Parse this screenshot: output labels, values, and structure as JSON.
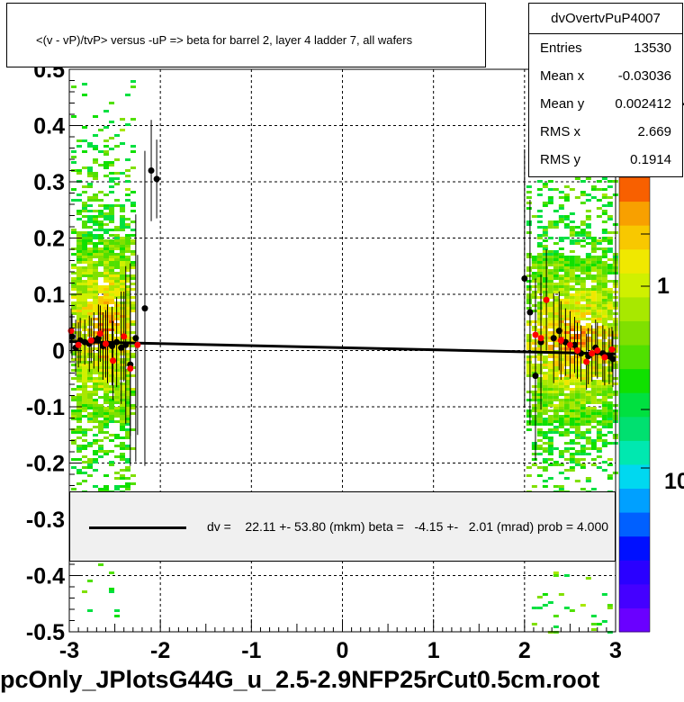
{
  "title": "<(v - vP)/tvP> versus  -uP => beta for barrel 2, layer 4 ladder 7, all wafers",
  "file_label": "pcOnly_JPlotsG44G_u_2.5-2.9NFP25rCut0.5cm.root",
  "stats": {
    "name": "dvOvertvPuP4007",
    "rows": [
      {
        "key": "Entries",
        "value": "13530"
      },
      {
        "key": "Mean x",
        "value": "-0.03036"
      },
      {
        "key": "Mean y",
        "value": "0.002412"
      },
      {
        "key": "RMS x",
        "value": "2.669"
      },
      {
        "key": "RMS y",
        "value": "0.1914"
      }
    ]
  },
  "legend": {
    "text": "dv =    22.11 +- 53.80 (mkm) beta =   -4.15 +-   2.01 (mrad) prob = 4.000"
  },
  "colors": {
    "fit_line": "#000000",
    "black_points": "#000000",
    "red_points": "#ff0000",
    "legend_background": "#f0f0f0",
    "palette": [
      "#6a00ff",
      "#4400ff",
      "#2a00ff",
      "#0010ff",
      "#0060ff",
      "#00a0ff",
      "#00d8f0",
      "#00e8b0",
      "#00e070",
      "#00e040",
      "#10e000",
      "#50e000",
      "#80e000",
      "#a8e800",
      "#d0f000",
      "#f0e800",
      "#f8c800",
      "#f8a000",
      "#f86000"
    ]
  },
  "chart_data": {
    "type": "scatter",
    "title": "<(v - vP)/tvP> versus  -uP => beta for barrel 2, layer 4 ladder 7, all wafers",
    "xlim": [
      -3,
      3
    ],
    "ylim": [
      -0.5,
      0.5
    ],
    "x_ticks": [
      -3,
      -2,
      -1,
      0,
      1,
      2,
      3
    ],
    "y_ticks": [
      -0.5,
      -0.4,
      -0.3,
      -0.2,
      -0.1,
      0,
      0.1,
      0.2,
      0.3,
      0.4,
      0.5
    ],
    "x_tick_labels": [
      "-3",
      "-2",
      "-1",
      "0",
      "1",
      "2",
      "3"
    ],
    "y_tick_labels": [
      "-0.5",
      "-0.4",
      "-0.3",
      "-0.2",
      "-0.1",
      "0",
      "0.1",
      "0.2",
      "0.3",
      "0.4",
      "0.5"
    ],
    "grid": true,
    "colorbar_labels": [
      "10",
      "1",
      "10"
    ],
    "fit_line": {
      "x": [
        -3,
        3
      ],
      "y": [
        0.016,
        -0.006
      ]
    },
    "density_bands": [
      {
        "x_range": [
          -2.98,
          -2.3
        ],
        "core_y": [
          -0.12,
          0.21
        ],
        "extent_y": [
          -0.5,
          0.5
        ]
      },
      {
        "x_range": [
          2.02,
          3.0
        ],
        "core_y": [
          -0.13,
          0.17
        ],
        "extent_y": [
          -0.5,
          0.5
        ]
      }
    ],
    "series": [
      {
        "color": "black",
        "points": [
          {
            "x": -2.97,
            "y": 0.025,
            "err": 0.04
          },
          {
            "x": -2.93,
            "y": 0.005,
            "err": 0.05
          },
          {
            "x": -2.88,
            "y": 0.018,
            "err": 0.04
          },
          {
            "x": -2.83,
            "y": 0.015,
            "err": 0.04
          },
          {
            "x": -2.78,
            "y": 0.012,
            "err": 0.05
          },
          {
            "x": -2.73,
            "y": 0.018,
            "err": 0.05
          },
          {
            "x": -2.68,
            "y": 0.022,
            "err": 0.06
          },
          {
            "x": -2.63,
            "y": 0.008,
            "err": 0.06
          },
          {
            "x": -2.58,
            "y": 0.012,
            "err": 0.07
          },
          {
            "x": -2.53,
            "y": 0.008,
            "err": 0.07
          },
          {
            "x": -2.48,
            "y": 0.015,
            "err": 0.08
          },
          {
            "x": -2.43,
            "y": 0.005,
            "err": 0.1
          },
          {
            "x": -2.38,
            "y": 0.01,
            "err": 0.14
          },
          {
            "x": -2.33,
            "y": -0.025,
            "err": 0.18
          },
          {
            "x": -2.27,
            "y": 0.022,
            "err": 0.22
          },
          {
            "x": -2.17,
            "y": 0.075,
            "err": 0.28
          },
          {
            "x": -2.1,
            "y": 0.32,
            "err": 0.09
          },
          {
            "x": -2.04,
            "y": 0.305,
            "err": 0.07
          },
          {
            "x": 2.0,
            "y": 0.128,
            "err": 0.23
          },
          {
            "x": 2.06,
            "y": 0.068,
            "err": 0.2
          },
          {
            "x": 2.12,
            "y": -0.045,
            "err": 0.15
          },
          {
            "x": 2.18,
            "y": 0.015,
            "err": 0.12
          },
          {
            "x": 2.32,
            "y": 0.022,
            "err": 0.08
          },
          {
            "x": 2.38,
            "y": 0.035,
            "err": 0.07
          },
          {
            "x": 2.45,
            "y": 0.015,
            "err": 0.06
          },
          {
            "x": 2.55,
            "y": 0.01,
            "err": 0.05
          },
          {
            "x": 2.62,
            "y": -0.005,
            "err": 0.05
          },
          {
            "x": 2.7,
            "y": -0.01,
            "err": 0.05
          },
          {
            "x": 2.78,
            "y": 0.005,
            "err": 0.05
          },
          {
            "x": 2.86,
            "y": -0.005,
            "err": 0.05
          },
          {
            "x": 2.93,
            "y": -0.01,
            "err": 0.05
          },
          {
            "x": 2.97,
            "y": -0.015,
            "err": 0.05
          }
        ]
      },
      {
        "color": "red",
        "points": [
          {
            "x": -2.98,
            "y": 0.035,
            "err": 0.04
          },
          {
            "x": -2.9,
            "y": 0.01,
            "err": 0.04
          },
          {
            "x": -2.76,
            "y": 0.018,
            "err": 0.04
          },
          {
            "x": -2.66,
            "y": 0.03,
            "err": 0.05
          },
          {
            "x": -2.6,
            "y": 0.012,
            "err": 0.06
          },
          {
            "x": -2.52,
            "y": -0.018,
            "err": 0.07
          },
          {
            "x": -2.4,
            "y": 0.025,
            "err": 0.08
          },
          {
            "x": -2.33,
            "y": -0.032,
            "err": 0.12
          },
          {
            "x": -2.25,
            "y": 0.01,
            "err": 0.16
          },
          {
            "x": 2.12,
            "y": 0.028,
            "err": 0.1
          },
          {
            "x": 2.18,
            "y": 0.022,
            "err": 0.1
          },
          {
            "x": 2.24,
            "y": 0.09,
            "err": 0.09
          },
          {
            "x": 2.4,
            "y": 0.018,
            "err": 0.07
          },
          {
            "x": 2.5,
            "y": 0.01,
            "err": 0.06
          },
          {
            "x": 2.58,
            "y": 0.0,
            "err": 0.05
          },
          {
            "x": 2.68,
            "y": -0.02,
            "err": 0.05
          },
          {
            "x": 2.74,
            "y": -0.005,
            "err": 0.05
          },
          {
            "x": 2.8,
            "y": 0.0,
            "err": 0.05
          },
          {
            "x": 2.88,
            "y": -0.012,
            "err": 0.05
          },
          {
            "x": 2.96,
            "y": 0.002,
            "err": 0.04
          }
        ]
      }
    ]
  }
}
